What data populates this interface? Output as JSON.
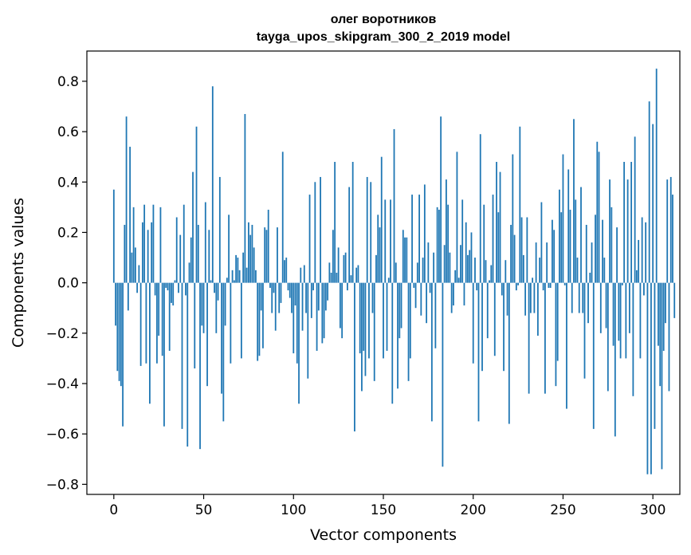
{
  "chart_data": {
    "type": "bar",
    "title": "олег воротников",
    "subtitle": "tayga_upos_skipgram_300_2_2019 model",
    "xlabel": "Vector components",
    "ylabel": "Components values",
    "xlim": [
      -15,
      315
    ],
    "ylim": [
      -0.84,
      0.92
    ],
    "xticks": [
      0,
      50,
      100,
      150,
      200,
      250,
      300
    ],
    "yticks": [
      -0.8,
      -0.6,
      -0.4,
      -0.2,
      0.0,
      0.2,
      0.4,
      0.6,
      0.8
    ],
    "ytick_labels": [
      "−0.8",
      "−0.6",
      "−0.4",
      "−0.2",
      "0.0",
      "0.2",
      "0.4",
      "0.6",
      "0.8"
    ],
    "bar_color": "#1f77b4",
    "values": [
      0.37,
      -0.17,
      -0.35,
      -0.39,
      -0.41,
      -0.57,
      0.23,
      0.66,
      -0.11,
      0.54,
      0.12,
      0.3,
      0.14,
      -0.04,
      0.07,
      -0.33,
      0.24,
      0.31,
      -0.32,
      0.21,
      -0.48,
      0.24,
      0.31,
      -0.05,
      -0.32,
      -0.21,
      0.3,
      -0.29,
      -0.57,
      -0.02,
      -0.03,
      -0.27,
      -0.08,
      -0.09,
      0.01,
      0.26,
      -0.04,
      0.19,
      -0.58,
      0.31,
      -0.05,
      -0.65,
      0.08,
      0.18,
      0.44,
      -0.34,
      0.62,
      0.23,
      -0.66,
      -0.17,
      -0.2,
      0.32,
      -0.41,
      0.21,
      0.01,
      0.78,
      -0.04,
      -0.2,
      -0.07,
      0.42,
      -0.44,
      -0.55,
      -0.17,
      0.02,
      0.27,
      -0.32,
      0.05,
      0.01,
      0.11,
      0.1,
      0.05,
      -0.3,
      0.12,
      0.67,
      0.06,
      0.24,
      0.19,
      0.23,
      0.14,
      0.05,
      -0.31,
      -0.29,
      -0.11,
      -0.26,
      0.22,
      0.21,
      0.29,
      -0.02,
      -0.12,
      -0.04,
      -0.19,
      0.22,
      -0.12,
      -0.08,
      0.52,
      0.09,
      0.1,
      -0.03,
      -0.06,
      -0.12,
      -0.28,
      -0.09,
      -0.32,
      -0.48,
      0.06,
      -0.19,
      0.07,
      -0.12,
      -0.38,
      0.35,
      -0.14,
      -0.03,
      0.4,
      -0.27,
      -0.11,
      0.42,
      -0.24,
      -0.22,
      -0.11,
      -0.07,
      0.08,
      0.04,
      0.21,
      0.48,
      0.04,
      0.14,
      -0.18,
      -0.22,
      0.11,
      0.12,
      -0.03,
      0.38,
      0.03,
      0.48,
      -0.59,
      0.06,
      0.07,
      -0.28,
      -0.43,
      -0.27,
      -0.37,
      0.42,
      -0.3,
      0.4,
      -0.12,
      -0.39,
      0.11,
      0.27,
      0.22,
      0.5,
      -0.3,
      0.33,
      -0.27,
      0.02,
      0.33,
      -0.48,
      0.61,
      0.08,
      -0.42,
      -0.22,
      -0.18,
      0.21,
      0.18,
      0.18,
      -0.39,
      -0.3,
      0.35,
      -0.02,
      -0.1,
      0.08,
      0.35,
      -0.13,
      0.1,
      0.39,
      -0.16,
      0.16,
      -0.04,
      -0.55,
      0.12,
      -0.26,
      0.3,
      0.29,
      0.66,
      -0.73,
      0.15,
      0.41,
      0.31,
      0.12,
      -0.12,
      -0.09,
      0.05,
      0.52,
      0.02,
      0.15,
      0.33,
      -0.09,
      0.24,
      0.11,
      0.13,
      0.2,
      -0.32,
      0.1,
      -0.03,
      -0.55,
      0.59,
      -0.35,
      0.31,
      0.09,
      -0.22,
      0.01,
      0.07,
      0.35,
      -0.29,
      0.48,
      0.28,
      0.44,
      -0.05,
      -0.35,
      0.09,
      -0.13,
      -0.56,
      0.23,
      0.51,
      0.19,
      -0.03,
      -0.01,
      0.62,
      0.26,
      0.11,
      -0.13,
      0.26,
      -0.44,
      -0.12,
      0.02,
      -0.12,
      0.16,
      -0.21,
      0.1,
      0.32,
      -0.03,
      -0.44,
      0.16,
      -0.02,
      -0.02,
      0.25,
      0.21,
      -0.41,
      -0.31,
      0.37,
      0.28,
      0.51,
      -0.01,
      -0.5,
      0.45,
      0.29,
      -0.12,
      0.65,
      0.33,
      0.1,
      -0.12,
      0.38,
      -0.12,
      -0.38,
      0.23,
      -0.16,
      0.04,
      0.16,
      -0.58,
      0.27,
      0.56,
      0.52,
      -0.2,
      0.25,
      0.1,
      -0.18,
      -0.43,
      0.41,
      0.3,
      -0.25,
      -0.61,
      0.22,
      -0.23,
      -0.3,
      -0.01,
      0.48,
      -0.3,
      0.41,
      -0.2,
      0.48,
      -0.45,
      0.58,
      0.05,
      0.17,
      -0.3,
      0.26,
      -0.05,
      0.24,
      -0.76,
      0.72,
      -0.76,
      0.63,
      -0.58,
      0.85,
      -0.25,
      -0.41,
      -0.74,
      -0.27,
      -0.16,
      0.41,
      -0.43,
      0.42,
      0.35,
      -0.14
    ]
  }
}
